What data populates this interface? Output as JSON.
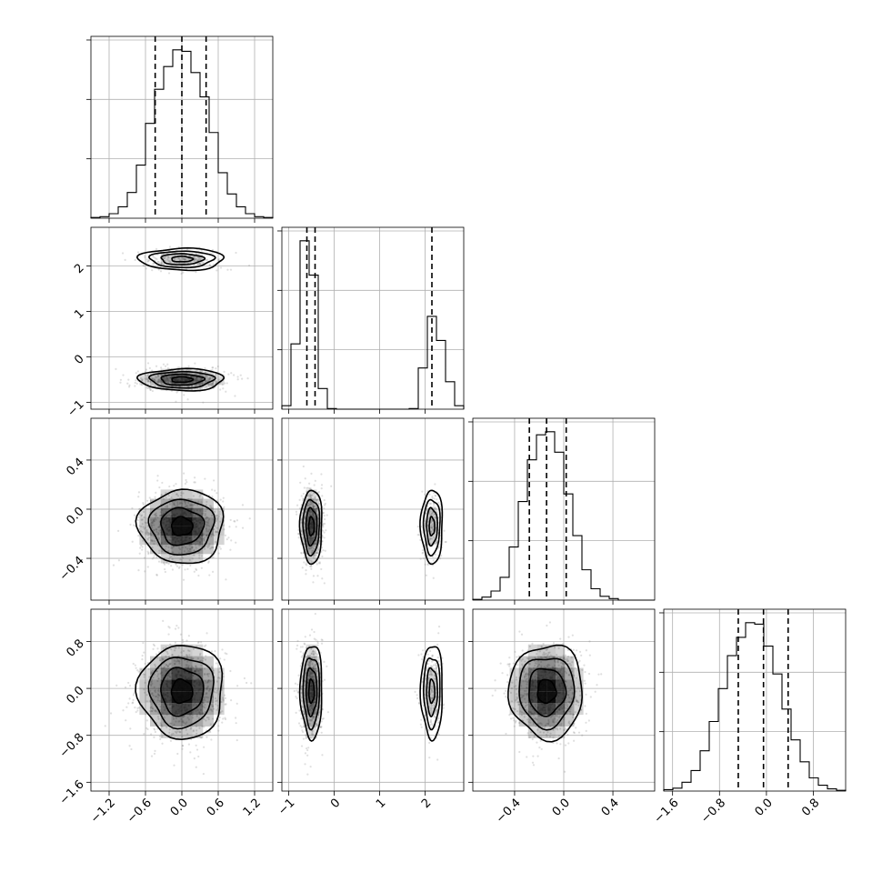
{
  "chart_data": {
    "type": "corner",
    "title": "",
    "parameters": [
      {
        "index": 0,
        "mean": 0.0,
        "std": 0.35,
        "range": [
          -1.5,
          1.5
        ],
        "ticks": [
          -1.2,
          -0.6,
          0.0,
          0.6,
          1.2
        ],
        "tick_labels": [
          "−1.2",
          "−0.6",
          "0.0",
          "0.6",
          "1.2"
        ],
        "quantiles": [
          -0.44,
          0.0,
          0.4
        ]
      },
      {
        "index": 1,
        "mixture": [
          {
            "weight": 0.75,
            "mean": -0.5,
            "std": 0.12
          },
          {
            "weight": 0.25,
            "mean": 2.15,
            "std": 0.12
          }
        ],
        "range": [
          -1.15,
          2.85
        ],
        "ticks": [
          -1,
          0,
          1,
          2
        ],
        "tick_labels": [
          "−1",
          "0",
          "1",
          "2"
        ],
        "quantiles": [
          -0.6,
          -0.42,
          2.15
        ]
      },
      {
        "index": 2,
        "mean": -0.14,
        "std": 0.15,
        "range": [
          -0.74,
          0.74
        ],
        "ticks": [
          -0.4,
          0.0,
          0.4
        ],
        "tick_labels": [
          "−0.4",
          "0.0",
          "0.4"
        ],
        "quantiles": [
          -0.28,
          -0.14,
          0.02
        ]
      },
      {
        "index": 3,
        "mean": -0.05,
        "std": 0.4,
        "range": [
          -1.75,
          1.35
        ],
        "ticks": [
          -1.6,
          -0.8,
          0.0,
          0.8
        ],
        "tick_labels": [
          "−1.6",
          "−0.8",
          "0.0",
          "0.8"
        ],
        "quantiles": [
          -0.48,
          -0.05,
          0.37
        ]
      }
    ],
    "histograms": [
      {
        "param": 0,
        "bins_edges": [
          -1.5,
          -1.35,
          -1.2,
          -1.05,
          -0.9,
          -0.75,
          -0.6,
          -0.45,
          -0.3,
          -0.15,
          0.0,
          0.15,
          0.3,
          0.45,
          0.6,
          0.75,
          0.9,
          1.05,
          1.2,
          1.35,
          1.5
        ],
        "counts": [
          1,
          2,
          6,
          15,
          34,
          70,
          125,
          170,
          200,
          222,
          220,
          192,
          160,
          113,
          60,
          32,
          15,
          6,
          2,
          1
        ]
      },
      {
        "param": 1,
        "bins_edges": [
          -1.15,
          -0.95,
          -0.75,
          -0.55,
          -0.35,
          -0.15,
          0.05,
          0.25,
          0.45,
          0.65,
          0.85,
          1.05,
          1.25,
          1.45,
          1.65,
          1.85,
          2.05,
          2.25,
          2.45,
          2.65,
          2.85
        ],
        "counts": [
          10,
          190,
          490,
          390,
          60,
          2,
          0,
          0,
          0,
          0,
          0,
          0,
          0,
          0,
          2,
          120,
          270,
          200,
          80,
          10
        ]
      },
      {
        "param": 2,
        "bins_edges": [
          -0.74,
          -0.666,
          -0.592,
          -0.518,
          -0.444,
          -0.37,
          -0.296,
          -0.222,
          -0.148,
          -0.074,
          0.0,
          0.074,
          0.148,
          0.222,
          0.296,
          0.37,
          0.444,
          0.518,
          0.592,
          0.666,
          0.74
        ],
        "counts": [
          1,
          4,
          12,
          30,
          70,
          130,
          185,
          218,
          222,
          195,
          140,
          85,
          40,
          15,
          5,
          2,
          0,
          0,
          0,
          0
        ]
      },
      {
        "param": 3,
        "bins_edges": [
          -1.75,
          -1.595,
          -1.44,
          -1.285,
          -1.13,
          -0.975,
          -0.82,
          -0.665,
          -0.51,
          -0.355,
          -0.2,
          -0.045,
          0.11,
          0.265,
          0.42,
          0.575,
          0.73,
          0.885,
          1.04,
          1.195,
          1.35
        ],
        "counts": [
          2,
          4,
          12,
          28,
          55,
          95,
          140,
          185,
          210,
          230,
          228,
          198,
          160,
          112,
          70,
          40,
          18,
          8,
          3,
          1
        ]
      }
    ],
    "pairs": [
      {
        "x": 0,
        "y": 1
      },
      {
        "x": 0,
        "y": 2
      },
      {
        "x": 1,
        "y": 2
      },
      {
        "x": 0,
        "y": 3
      },
      {
        "x": 1,
        "y": 3
      },
      {
        "x": 2,
        "y": 3
      }
    ],
    "contour_levels_sigma": [
      0.5,
      1.0,
      1.5,
      2.0
    ],
    "grid": true,
    "n_samples_shown": 900
  }
}
